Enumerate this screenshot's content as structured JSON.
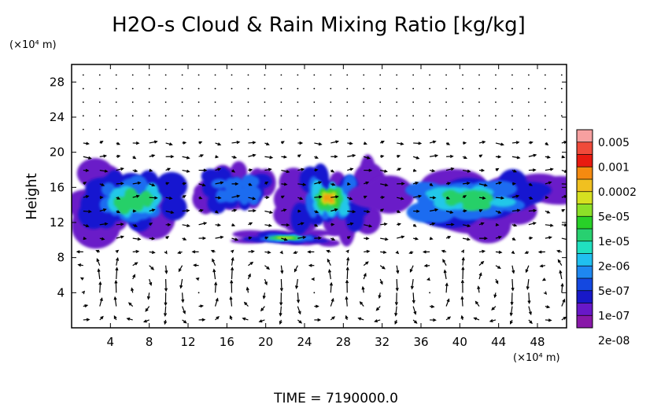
{
  "chart_data": {
    "type": "heatmap",
    "title": "H2O-s Cloud & Rain Mixing Ratio [kg/kg]",
    "ylabel": "Height",
    "y_unit": "(×10⁴ m)",
    "x_unit": "(×10⁴ m)",
    "xlim": [
      0,
      51
    ],
    "ylim": [
      0,
      30
    ],
    "x_ticks": [
      4,
      8,
      12,
      16,
      20,
      24,
      28,
      32,
      36,
      40,
      44,
      48
    ],
    "y_ticks": [
      4,
      8,
      12,
      16,
      20,
      24,
      28
    ],
    "time_label": "TIME = 7190000.0",
    "colorbar": {
      "labels": [
        "0.005",
        "0.001",
        "0.0002",
        "5e-05",
        "1e-05",
        "2e-06",
        "5e-07",
        "1e-07",
        "2e-08"
      ],
      "colors_top_to_bottom": [
        "#f7a0a0",
        "#f04a3a",
        "#e81a10",
        "#f58a10",
        "#f0c020",
        "#d6e020",
        "#8ce028",
        "#28d028",
        "#28d070",
        "#20e0c0",
        "#20c0f0",
        "#1e88f0",
        "#1448e0",
        "#1818c8",
        "#6818c8",
        "#8818a8"
      ]
    },
    "cloud_regions": [
      {
        "x_range": [
          0,
          13
        ],
        "y_range": [
          10.5,
          18.5
        ],
        "max_mixing_ratio": "1e-05"
      },
      {
        "x_range": [
          13,
          21
        ],
        "y_range": [
          13,
          18.5
        ],
        "max_mixing_ratio": "5e-07"
      },
      {
        "x_range": [
          17,
          27
        ],
        "y_range": [
          9.5,
          11
        ],
        "max_mixing_ratio": "0.0002"
      },
      {
        "x_range": [
          22,
          31
        ],
        "y_range": [
          10.5,
          19
        ],
        "max_mixing_ratio": "0.001"
      },
      {
        "x_range": [
          31,
          51
        ],
        "y_range": [
          11,
          18
        ],
        "max_mixing_ratio": "1e-05"
      }
    ],
    "wind_vectors": {
      "lower_layer": "two-cell circulation rolls below height 8, centered near x = 10, 22, 34, 46",
      "upper_layer": "mostly eastward flow between heights 10 and 21"
    }
  }
}
